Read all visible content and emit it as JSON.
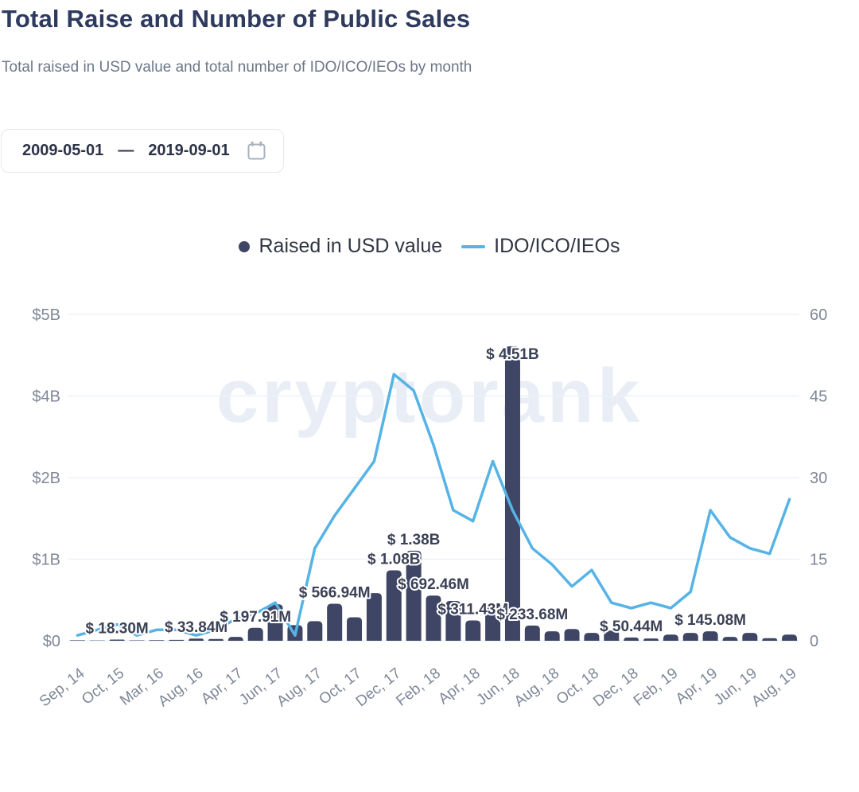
{
  "page": {
    "title": "Total Raise and Number of Public Sales",
    "subtitle": "Total raised in USD value and total number of IDO/ICO/IEOs by month"
  },
  "date_range": {
    "start": "2009-05-01",
    "separator": "—",
    "end": "2019-09-01",
    "calendar_icon": "calendar-icon"
  },
  "legend": {
    "items": [
      {
        "label": "Raised in USD value",
        "marker": "dot"
      },
      {
        "label": "IDO/ICO/IEOs",
        "marker": "line"
      }
    ]
  },
  "watermark": "cryptorank",
  "colors": {
    "bar": "#3e4565",
    "line": "#56b3e5",
    "grid": "#edf1f7",
    "axis_text": "#7e8798",
    "value_label": "#3b4156",
    "title": "#2e3b5e",
    "subtitle": "#6b7789"
  },
  "chart_data": {
    "type": "bar",
    "combo": "bar+line",
    "x_tick_labels": [
      "Sep, 14",
      "Oct, 15",
      "Mar, 16",
      "Aug, 16",
      "Apr, 17",
      "Jun, 17",
      "Aug, 17",
      "Oct, 17",
      "Dec, 17",
      "Feb, 18",
      "Apr, 18",
      "Jun, 18",
      "Aug, 18",
      "Oct, 18",
      "Dec, 18",
      "Feb, 19",
      "Apr, 19",
      "Jun, 19",
      "Aug, 19"
    ],
    "x_tick_step": 2,
    "series": [
      {
        "name": "Raised in USD value",
        "type": "bar",
        "axis": "left",
        "color": "#3e4565",
        "values_usd_m": [
          8,
          4,
          18.3,
          6,
          9,
          13,
          33.84,
          28,
          60,
          197.91,
          560,
          240,
          300,
          566.94,
          360,
          730,
          1080,
          1380,
          692.46,
          610,
          311.43,
          570,
          4510,
          233.68,
          145,
          180,
          120,
          155,
          50.44,
          35,
          95,
          120,
          145.08,
          60,
          120,
          40,
          95
        ]
      },
      {
        "name": "IDO/ICO/IEOs",
        "type": "line",
        "axis": "right",
        "color": "#56b3e5",
        "values_count": [
          1,
          2,
          3,
          1,
          2,
          2,
          1,
          2,
          4,
          5,
          7,
          1,
          17,
          23,
          28,
          33,
          49,
          46,
          36,
          24,
          22,
          33,
          24,
          17,
          14,
          10,
          13,
          7,
          6,
          7,
          6,
          9,
          24,
          19,
          17,
          16,
          26
        ]
      }
    ],
    "value_labels": [
      {
        "index": 2,
        "text": "$ 18.30M"
      },
      {
        "index": 6,
        "text": "$ 33.84M"
      },
      {
        "index": 9,
        "text": "$ 197.91M"
      },
      {
        "index": 13,
        "text": "$ 566.94M"
      },
      {
        "index": 16,
        "text": "$ 1.08B"
      },
      {
        "index": 17,
        "text": "$ 1.38B"
      },
      {
        "index": 18,
        "text": "$ 692.46M"
      },
      {
        "index": 20,
        "text": "$ 311.43M"
      },
      {
        "index": 22,
        "text": "$ 4.51B"
      },
      {
        "index": 23,
        "text": "$ 233.68M"
      },
      {
        "index": 28,
        "text": "$ 50.44M"
      },
      {
        "index": 32,
        "text": "$ 145.08M"
      }
    ],
    "left_axis": {
      "ticks": [
        "$5B",
        "$4B",
        "$2B",
        "$1B",
        "$0"
      ],
      "max_usd_m": 5000
    },
    "right_axis": {
      "ticks": [
        "60",
        "45",
        "30",
        "15",
        "0"
      ],
      "max": 60
    },
    "grid": true,
    "legend_position": "top"
  }
}
